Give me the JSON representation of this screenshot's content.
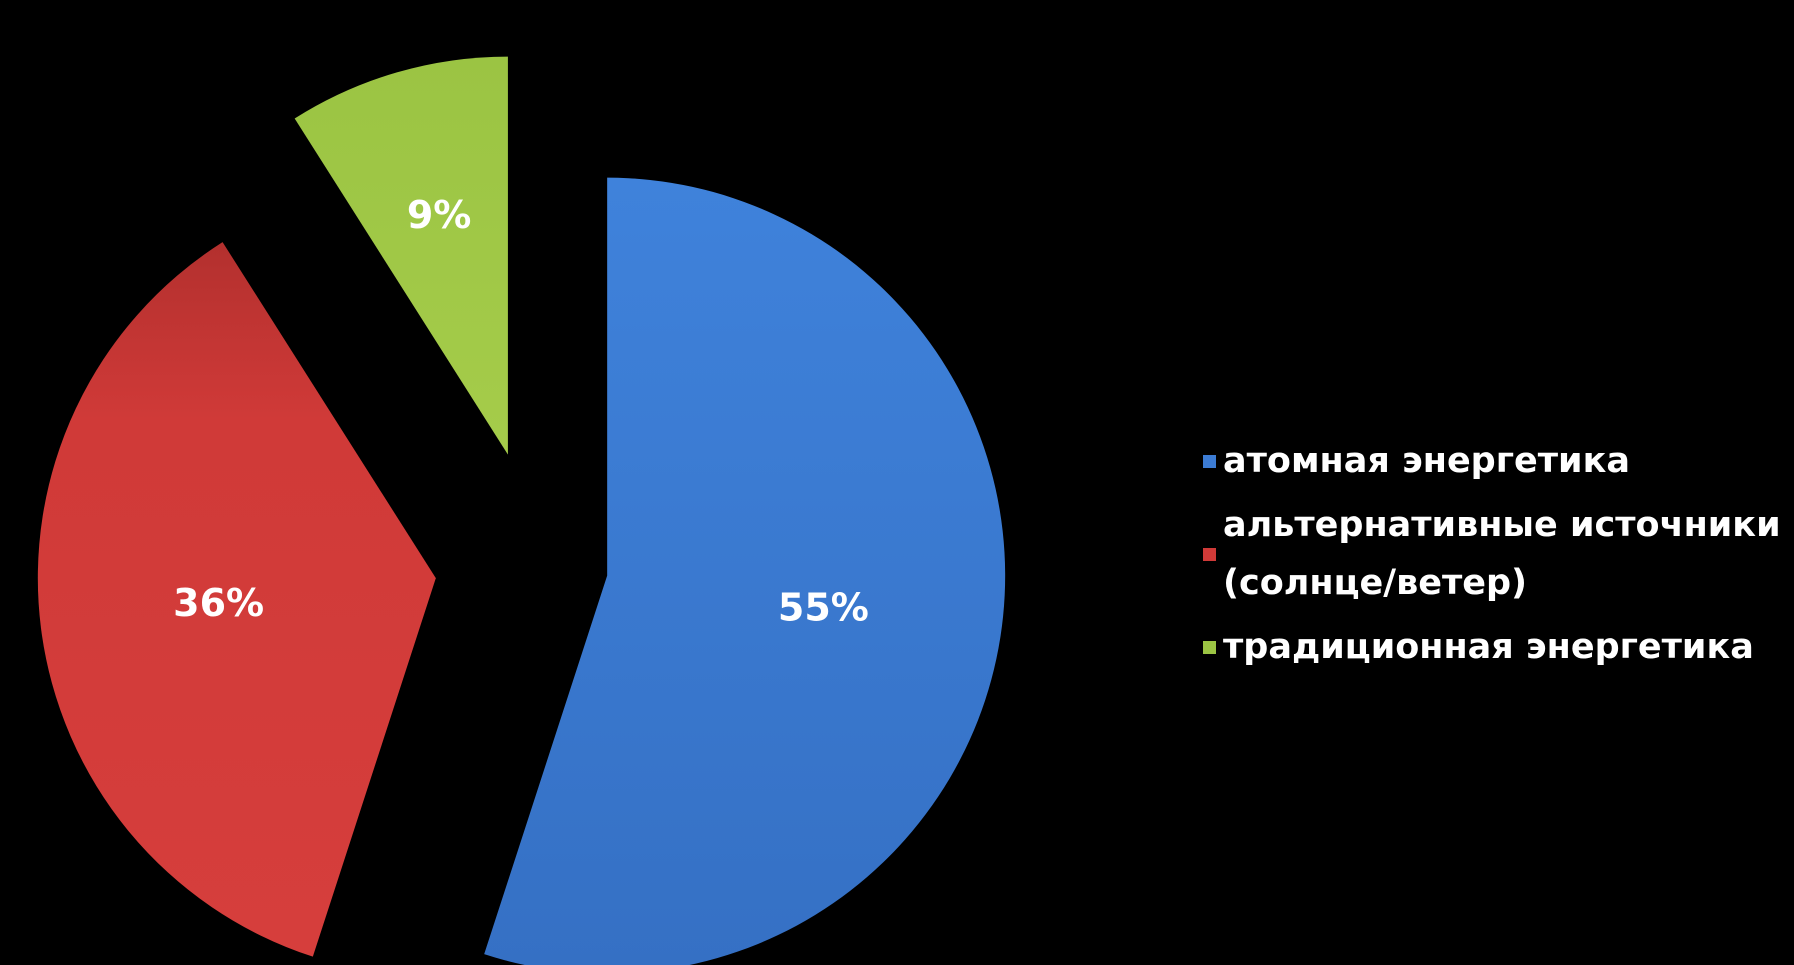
{
  "chart_data": {
    "type": "pie",
    "exploded": true,
    "title": "",
    "legend_position": "right",
    "labels_format": "percent",
    "slices": [
      {
        "name": "атомная энергетика",
        "value": 55,
        "label": "55%",
        "color": "#3c7cd4"
      },
      {
        "name": "альтернативные источники\n(солнце/ветер)",
        "value": 36,
        "label": "36%",
        "color": "#d03a38"
      },
      {
        "name": "традиционная энергетика",
        "value": 9,
        "label": "9%",
        "color": "#9bc443"
      }
    ]
  }
}
